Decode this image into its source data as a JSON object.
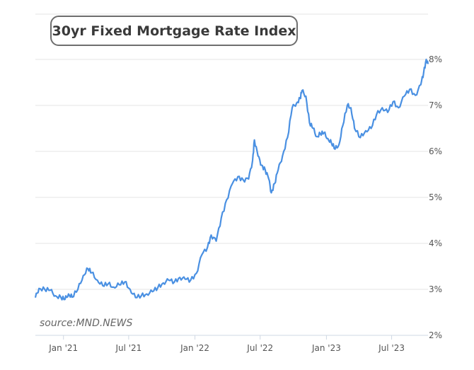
{
  "chart_data": {
    "type": "line",
    "title": "30yr Fixed Mortgage Rate Index",
    "source": "source:MND.NEWS",
    "xlabel": "",
    "ylabel": "",
    "ylim": [
      2,
      8
    ],
    "yticks": [
      {
        "value": 2,
        "label": "2%"
      },
      {
        "value": 3,
        "label": "3%"
      },
      {
        "value": 4,
        "label": "4%"
      },
      {
        "value": 5,
        "label": "5%"
      },
      {
        "value": 6,
        "label": "6%"
      },
      {
        "value": 7,
        "label": "7%"
      },
      {
        "value": 8,
        "label": "8%"
      }
    ],
    "xrange": [
      "2020-10-15",
      "2023-10-10"
    ],
    "xticks": [
      {
        "date": "2021-01-01",
        "label": "Jan '21"
      },
      {
        "date": "2021-07-01",
        "label": "Jul '21"
      },
      {
        "date": "2022-01-01",
        "label": "Jan '22"
      },
      {
        "date": "2022-07-01",
        "label": "Jul '22"
      },
      {
        "date": "2023-01-01",
        "label": "Jan '23"
      },
      {
        "date": "2023-07-01",
        "label": "Jul '23"
      }
    ],
    "grid": true,
    "series": [
      {
        "color": "#4a90e2",
        "points": [
          [
            "2020-10-15",
            2.82
          ],
          [
            "2020-10-25",
            3.02
          ],
          [
            "2020-11-10",
            3.0
          ],
          [
            "2020-11-25",
            2.98
          ],
          [
            "2020-12-10",
            2.86
          ],
          [
            "2020-12-25",
            2.82
          ],
          [
            "2021-01-05",
            2.78
          ],
          [
            "2021-01-15",
            2.9
          ],
          [
            "2021-01-25",
            2.83
          ],
          [
            "2021-02-10",
            3.0
          ],
          [
            "2021-02-25",
            3.3
          ],
          [
            "2021-03-10",
            3.45
          ],
          [
            "2021-03-20",
            3.36
          ],
          [
            "2021-04-05",
            3.2
          ],
          [
            "2021-04-20",
            3.08
          ],
          [
            "2021-05-05",
            3.12
          ],
          [
            "2021-05-20",
            3.05
          ],
          [
            "2021-06-05",
            3.1
          ],
          [
            "2021-06-20",
            3.16
          ],
          [
            "2021-07-05",
            3.0
          ],
          [
            "2021-07-20",
            2.82
          ],
          [
            "2021-08-05",
            2.86
          ],
          [
            "2021-08-20",
            2.9
          ],
          [
            "2021-09-05",
            2.95
          ],
          [
            "2021-09-20",
            3.04
          ],
          [
            "2021-10-05",
            3.14
          ],
          [
            "2021-10-20",
            3.2
          ],
          [
            "2021-11-05",
            3.16
          ],
          [
            "2021-11-20",
            3.26
          ],
          [
            "2021-12-05",
            3.22
          ],
          [
            "2021-12-20",
            3.2
          ],
          [
            "2022-01-05",
            3.35
          ],
          [
            "2022-01-20",
            3.75
          ],
          [
            "2022-02-05",
            3.92
          ],
          [
            "2022-02-15",
            4.18
          ],
          [
            "2022-03-01",
            4.05
          ],
          [
            "2022-03-15",
            4.55
          ],
          [
            "2022-03-30",
            4.95
          ],
          [
            "2022-04-15",
            5.3
          ],
          [
            "2022-04-30",
            5.45
          ],
          [
            "2022-05-15",
            5.38
          ],
          [
            "2022-05-30",
            5.4
          ],
          [
            "2022-06-10",
            5.8
          ],
          [
            "2022-06-15",
            6.25
          ],
          [
            "2022-06-25",
            5.9
          ],
          [
            "2022-07-05",
            5.7
          ],
          [
            "2022-07-15",
            5.6
          ],
          [
            "2022-07-25",
            5.4
          ],
          [
            "2022-08-01",
            5.1
          ],
          [
            "2022-08-10",
            5.3
          ],
          [
            "2022-08-20",
            5.6
          ],
          [
            "2022-09-01",
            5.9
          ],
          [
            "2022-09-15",
            6.3
          ],
          [
            "2022-09-28",
            6.95
          ],
          [
            "2022-10-10",
            7.05
          ],
          [
            "2022-10-20",
            7.15
          ],
          [
            "2022-10-25",
            7.32
          ],
          [
            "2022-11-05",
            7.2
          ],
          [
            "2022-11-15",
            6.62
          ],
          [
            "2022-11-25",
            6.5
          ],
          [
            "2022-12-05",
            6.32
          ],
          [
            "2022-12-15",
            6.38
          ],
          [
            "2022-12-25",
            6.4
          ],
          [
            "2023-01-05",
            6.28
          ],
          [
            "2023-01-15",
            6.18
          ],
          [
            "2023-01-25",
            6.05
          ],
          [
            "2023-02-05",
            6.15
          ],
          [
            "2023-02-15",
            6.55
          ],
          [
            "2023-02-28",
            7.0
          ],
          [
            "2023-03-10",
            6.95
          ],
          [
            "2023-03-20",
            6.5
          ],
          [
            "2023-04-05",
            6.3
          ],
          [
            "2023-04-20",
            6.45
          ],
          [
            "2023-05-05",
            6.5
          ],
          [
            "2023-05-20",
            6.8
          ],
          [
            "2023-06-05",
            6.95
          ],
          [
            "2023-06-20",
            6.85
          ],
          [
            "2023-07-05",
            7.08
          ],
          [
            "2023-07-20",
            6.95
          ],
          [
            "2023-08-05",
            7.2
          ],
          [
            "2023-08-20",
            7.35
          ],
          [
            "2023-09-05",
            7.22
          ],
          [
            "2023-09-20",
            7.45
          ],
          [
            "2023-09-28",
            7.72
          ],
          [
            "2023-10-05",
            8.0
          ],
          [
            "2023-10-10",
            7.9
          ]
        ]
      }
    ]
  }
}
